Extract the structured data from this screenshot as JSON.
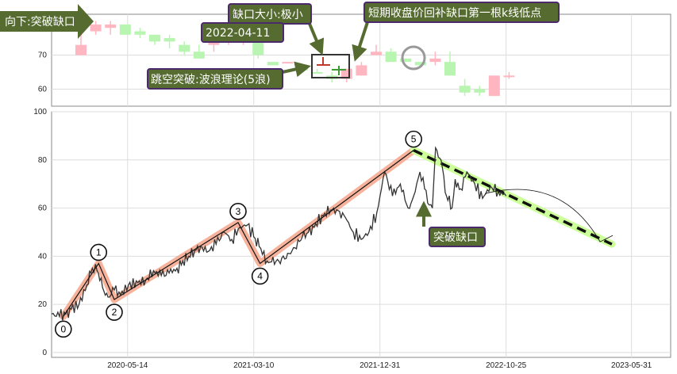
{
  "chart_data": [
    {
      "type": "candlestick",
      "ylim": [
        55,
        82
      ],
      "yticks": [
        60,
        70
      ],
      "candles": [
        {
          "o": 73,
          "h": 77,
          "l": 70,
          "c": 70,
          "up": true
        },
        {
          "o": 79,
          "h": 80,
          "l": 76,
          "c": 77,
          "up": true
        },
        {
          "o": 79,
          "h": 80,
          "l": 76,
          "c": 78,
          "up": true
        },
        {
          "o": 79,
          "h": 79,
          "l": 76,
          "c": 76,
          "up": false
        },
        {
          "o": 77,
          "h": 78,
          "l": 75,
          "c": 76,
          "up": false
        },
        {
          "o": 74,
          "h": 76,
          "l": 73,
          "c": 76,
          "up": false
        },
        {
          "o": 75,
          "h": 76,
          "l": 72,
          "c": 74,
          "up": false
        },
        {
          "o": 73,
          "h": 74,
          "l": 70,
          "c": 71,
          "up": false
        },
        {
          "o": 71,
          "h": 73,
          "l": 69,
          "c": 69,
          "up": false
        },
        {
          "o": 73,
          "h": 75,
          "l": 71,
          "c": 75,
          "up": true
        },
        {
          "o": 75,
          "h": 76,
          "l": 73,
          "c": 74,
          "up": true
        },
        {
          "o": 75,
          "h": 76,
          "l": 73,
          "c": 74,
          "up": true
        },
        {
          "o": 74,
          "h": 74,
          "l": 69,
          "c": 70,
          "up": false
        },
        {
          "o": 68,
          "h": 68,
          "l": 67,
          "c": 67,
          "up": false
        },
        {
          "o": 68,
          "h": 68,
          "l": 68,
          "c": 68,
          "up": true
        },
        {
          "o": 66,
          "h": 67,
          "l": 66,
          "c": 66,
          "up": false
        },
        {
          "o": 65,
          "h": 66,
          "l": 65,
          "c": 65,
          "up": false
        },
        {
          "o": 64,
          "h": 65,
          "l": 62,
          "c": 63,
          "up": false
        },
        {
          "o": 66,
          "h": 66,
          "l": 62,
          "c": 63,
          "up": true
        },
        {
          "o": 67,
          "h": 68,
          "l": 64,
          "c": 64,
          "up": true
        },
        {
          "o": 71,
          "h": 73,
          "l": 70,
          "c": 70,
          "up": true
        },
        {
          "o": 71,
          "h": 72,
          "l": 68,
          "c": 68,
          "up": false
        },
        {
          "o": 69,
          "h": 69,
          "l": 68,
          "c": 68,
          "up": false
        },
        {
          "o": 68,
          "h": 68,
          "l": 67,
          "c": 67,
          "up": false
        },
        {
          "o": 69,
          "h": 71,
          "l": 67,
          "c": 68,
          "up": true
        },
        {
          "o": 68,
          "h": 71,
          "l": 64,
          "c": 64,
          "up": false
        },
        {
          "o": 61,
          "h": 63,
          "l": 58,
          "c": 59,
          "up": false
        },
        {
          "o": 60,
          "h": 61,
          "l": 58,
          "c": 59,
          "up": false
        },
        {
          "o": 64,
          "h": 64,
          "l": 58,
          "c": 58,
          "up": true
        },
        {
          "o": 64,
          "h": 65,
          "l": 63,
          "c": 64,
          "up": true
        }
      ]
    },
    {
      "type": "line",
      "xlim": [
        0,
        790
      ],
      "ylim": [
        -2,
        100
      ],
      "yticks": [
        0,
        20,
        40,
        60,
        80,
        100
      ],
      "xticks": [
        {
          "label": "2020-05-14",
          "x": 97
        },
        {
          "label": "2021-03-10",
          "x": 258
        },
        {
          "label": "2021-12-31",
          "x": 419
        },
        {
          "label": "2022-10-25",
          "x": 580
        },
        {
          "label": "2023-05-31",
          "x": 740
        }
      ],
      "price_anchors": [
        [
          0,
          16
        ],
        [
          10,
          15
        ],
        [
          18,
          16
        ],
        [
          25,
          18
        ],
        [
          35,
          20
        ],
        [
          45,
          28
        ],
        [
          52,
          35
        ],
        [
          58,
          34
        ],
        [
          65,
          27
        ],
        [
          72,
          23
        ],
        [
          80,
          26
        ],
        [
          88,
          24
        ],
        [
          98,
          28
        ],
        [
          110,
          29
        ],
        [
          120,
          30
        ],
        [
          130,
          34
        ],
        [
          140,
          32
        ],
        [
          150,
          33
        ],
        [
          160,
          35
        ],
        [
          175,
          40
        ],
        [
          190,
          44
        ],
        [
          200,
          42
        ],
        [
          210,
          45
        ],
        [
          220,
          50
        ],
        [
          230,
          47
        ],
        [
          240,
          52
        ],
        [
          250,
          53
        ],
        [
          258,
          48
        ],
        [
          265,
          44
        ],
        [
          275,
          38
        ],
        [
          290,
          38
        ],
        [
          305,
          41
        ],
        [
          320,
          48
        ],
        [
          335,
          52
        ],
        [
          345,
          57
        ],
        [
          360,
          60
        ],
        [
          375,
          56
        ],
        [
          385,
          50
        ],
        [
          395,
          47
        ],
        [
          405,
          50
        ],
        [
          415,
          58
        ],
        [
          425,
          75
        ],
        [
          435,
          65
        ],
        [
          445,
          70
        ],
        [
          455,
          60
        ],
        [
          462,
          65
        ],
        [
          470,
          75
        ],
        [
          476,
          68
        ],
        [
          480,
          62
        ],
        [
          486,
          60
        ],
        [
          490,
          85
        ],
        [
          497,
          80
        ],
        [
          504,
          65
        ],
        [
          511,
          60
        ],
        [
          515,
          72
        ],
        [
          522,
          68
        ],
        [
          530,
          75
        ],
        [
          540,
          70
        ],
        [
          550,
          64
        ],
        [
          560,
          69
        ],
        [
          570,
          67
        ],
        [
          580,
          65
        ]
      ],
      "waves": [
        {
          "label": "0",
          "x": 15,
          "y": 15
        },
        {
          "label": "1",
          "x": 60,
          "y": 37
        },
        {
          "label": "2",
          "x": 80,
          "y": 22
        },
        {
          "label": "3",
          "x": 238,
          "y": 54
        },
        {
          "label": "4",
          "x": 266,
          "y": 37
        },
        {
          "label": "5",
          "x": 462,
          "y": 84
        }
      ],
      "forecast": {
        "from": {
          "x": 462,
          "y": 84
        },
        "to": {
          "x": 715,
          "y": 45
        }
      },
      "arc": {
        "from": {
          "x": 553,
          "y": 66
        },
        "apex": {
          "x": 610,
          "y": 68
        },
        "to": {
          "x": 700,
          "y": 46
        }
      },
      "breakout_marker": {
        "x": 475,
        "y": 63
      }
    }
  ],
  "labels": {
    "down": "向下:突破缺口",
    "gap_size": "缺口大小:极小",
    "date": "2022-04-11",
    "short_term": "短期收盘价回补缺口第一根k线低点",
    "jump": "跳空突破:波浪理论(5浪)",
    "breakout": "突破缺口"
  },
  "colors": {
    "up": "#ffb6c1",
    "down": "#b8f5b0",
    "label_bg": "#556b2f",
    "label_border": "#4b2a6b",
    "wave_band": "#f4a58a",
    "forecast_band": "#ccff99",
    "price_line": "#333333",
    "gap_red": "#c0392b",
    "gap_green": "#3d9b35"
  }
}
